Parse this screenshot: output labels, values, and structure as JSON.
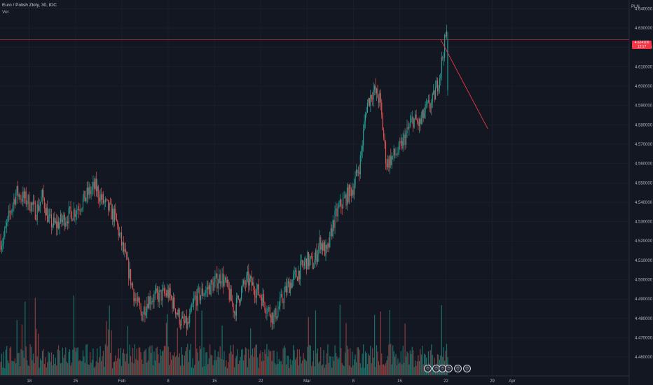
{
  "legend": {
    "title": "Euro / Polish Zloty, 30, IDC",
    "volume_label": "Vol"
  },
  "currency": "PLN",
  "last_price": {
    "value": "4.624100",
    "countdown": "12:17"
  },
  "colors": {
    "background": "#131722",
    "up": "#26a69a",
    "down": "#ef5350",
    "vol_up": "#1e6e68",
    "vol_down": "#8a3b3b",
    "grid": "#1f2330",
    "price_line": "#f23645",
    "trend_line": "#f23645"
  },
  "chart_data": {
    "type": "candlestick",
    "title": "Euro / Polish Zloty, 30, IDC",
    "y_axis": {
      "labels": [
        "4.640000",
        "4.630000",
        "4.620000",
        "4.610000",
        "4.600000",
        "4.590000",
        "4.580000",
        "4.570000",
        "4.560000",
        "4.550000",
        "4.540000",
        "4.530000",
        "4.520000",
        "4.510000",
        "4.500000",
        "4.490000",
        "4.480000",
        "4.470000",
        "4.460000"
      ],
      "ylim": [
        4.4575,
        4.6425
      ]
    },
    "x_axis": {
      "labels": [
        "18",
        "25",
        "Feb",
        "8",
        "15",
        "22",
        "Mar",
        "8",
        "15",
        "22",
        "29",
        "Apr"
      ]
    },
    "price_series": [
      [
        "2021-01-14",
        4.52
      ],
      [
        "2021-01-15",
        4.533
      ],
      [
        "2021-01-16",
        4.545
      ],
      [
        "2021-01-18",
        4.54
      ],
      [
        "2021-01-19",
        4.535
      ],
      [
        "2021-01-20",
        4.543
      ],
      [
        "2021-01-21",
        4.53
      ],
      [
        "2021-01-22",
        4.528
      ],
      [
        "2021-01-25",
        4.536
      ],
      [
        "2021-01-26",
        4.54
      ],
      [
        "2021-01-27",
        4.545
      ],
      [
        "2021-01-28",
        4.548
      ],
      [
        "2021-01-29",
        4.541
      ],
      [
        "2021-01-31",
        4.532
      ],
      [
        "2021-02-01",
        4.518
      ],
      [
        "2021-02-02",
        4.505
      ],
      [
        "2021-02-03",
        4.49
      ],
      [
        "2021-02-04",
        4.482
      ],
      [
        "2021-02-05",
        4.49
      ],
      [
        "2021-02-08",
        4.493
      ],
      [
        "2021-02-09",
        4.486
      ],
      [
        "2021-02-10",
        4.478
      ],
      [
        "2021-02-11",
        4.476
      ],
      [
        "2021-02-12",
        4.49
      ],
      [
        "2021-02-15",
        4.498
      ],
      [
        "2021-02-16",
        4.502
      ],
      [
        "2021-02-17",
        4.495
      ],
      [
        "2021-02-18",
        4.484
      ],
      [
        "2021-02-19",
        4.494
      ],
      [
        "2021-02-20",
        4.5
      ],
      [
        "2021-02-22",
        4.492
      ],
      [
        "2021-02-23",
        4.485
      ],
      [
        "2021-02-24",
        4.48
      ],
      [
        "2021-02-25",
        4.488
      ],
      [
        "2021-02-26",
        4.496
      ],
      [
        "2021-03-01",
        4.51
      ],
      [
        "2021-03-02",
        4.508
      ],
      [
        "2021-03-03",
        4.52
      ],
      [
        "2021-03-04",
        4.513
      ],
      [
        "2021-03-05",
        4.53
      ],
      [
        "2021-03-06",
        4.538
      ],
      [
        "2021-03-08",
        4.548
      ],
      [
        "2021-03-09",
        4.56
      ],
      [
        "2021-03-10",
        4.59
      ],
      [
        "2021-03-11",
        4.598
      ],
      [
        "2021-03-12",
        4.593
      ],
      [
        "2021-03-13",
        4.56
      ],
      [
        "2021-03-15",
        4.567
      ],
      [
        "2021-03-16",
        4.575
      ],
      [
        "2021-03-17",
        4.583
      ],
      [
        "2021-03-18",
        4.58
      ],
      [
        "2021-03-19",
        4.588
      ],
      [
        "2021-03-20",
        4.592
      ],
      [
        "2021-03-21",
        4.605
      ],
      [
        "2021-03-22",
        4.626
      ]
    ],
    "last_price": 4.6241,
    "volume_label": "Vol",
    "annotations": [
      {
        "type": "horizontal_line",
        "y": 4.6241
      },
      {
        "type": "trend_line",
        "from": [
          "2021-03-21",
          4.624
        ],
        "to": [
          "2021-03-28",
          4.578
        ]
      }
    ],
    "grid": true
  }
}
